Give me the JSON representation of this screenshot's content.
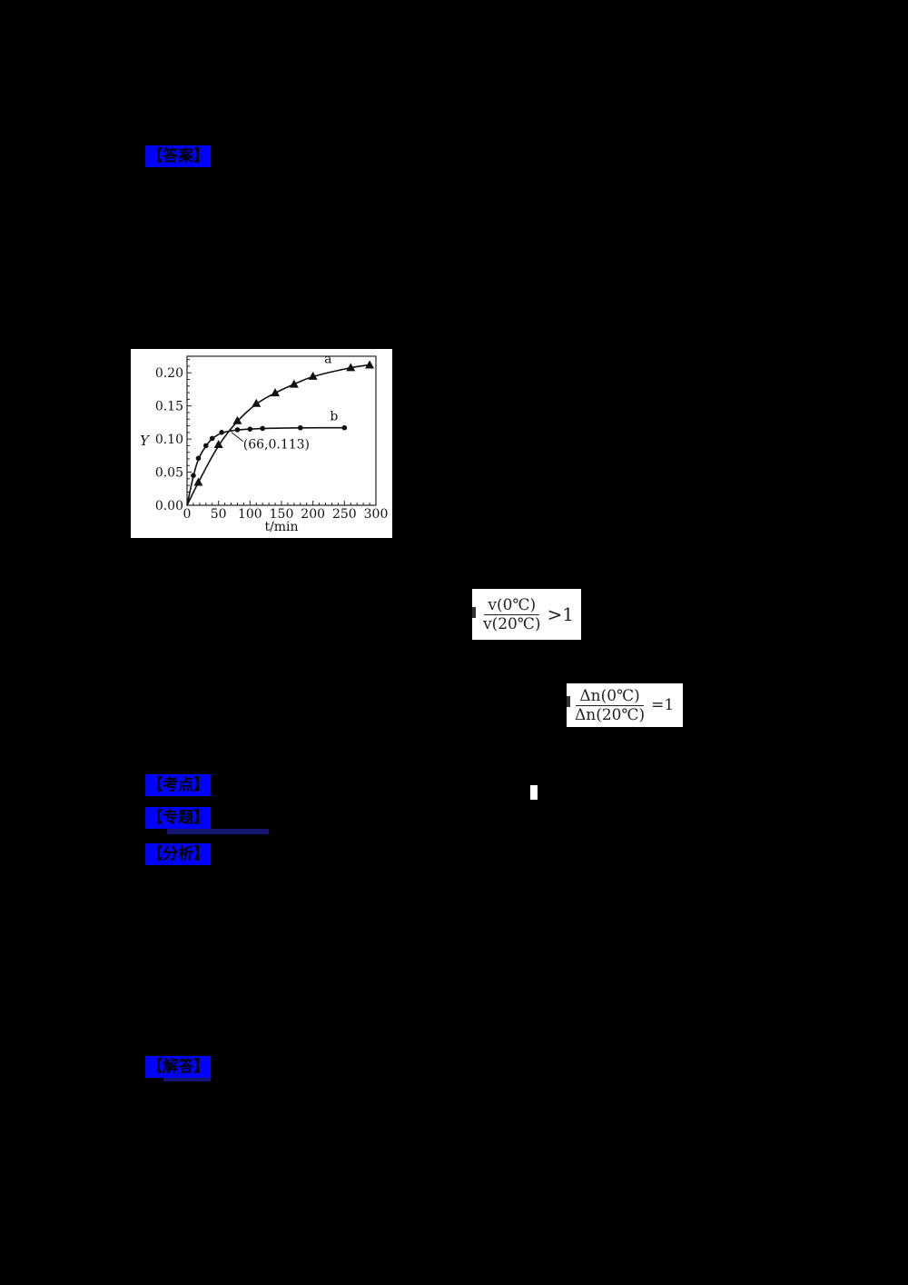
{
  "labels": {
    "answer": "【答案】",
    "exam_point": "【考点】",
    "topic": "【专题】",
    "analysis": "【分析】",
    "solution": "【解答】"
  },
  "colors": {
    "background": "#000000",
    "tag_bg": "#0000ff",
    "underline": "#141473",
    "figure_bg": "#ffffff"
  },
  "formulas": {
    "rate_ratio": {
      "numerator": "v(0℃)",
      "denominator": "v(20℃)",
      "relation": ">1"
    },
    "amount_ratio": {
      "numerator": "Δn(0℃)",
      "denominator": "Δn(20℃)",
      "relation": "=1"
    }
  },
  "chart_data": {
    "type": "line",
    "title": "",
    "xlabel": "t/min",
    "ylabel": "Y",
    "xlim": [
      0,
      300
    ],
    "ylim": [
      0,
      0.225
    ],
    "xticks": [
      "0",
      "50",
      "100",
      "150",
      "200",
      "250",
      "300"
    ],
    "yticks": [
      "0.00",
      "0.05",
      "0.10",
      "0.15",
      "0.20"
    ],
    "grid": false,
    "legend": "inline curve labels",
    "series": [
      {
        "name": "a",
        "marker": "triangle",
        "x": [
          0,
          18,
          50,
          80,
          110,
          140,
          170,
          200,
          260,
          290
        ],
        "y": [
          0,
          0.035,
          0.092,
          0.128,
          0.154,
          0.17,
          0.183,
          0.195,
          0.208,
          0.212
        ]
      },
      {
        "name": "b",
        "marker": "circle",
        "x": [
          0,
          10,
          18,
          30,
          40,
          55,
          80,
          100,
          120,
          180,
          250
        ],
        "y": [
          0,
          0.045,
          0.071,
          0.09,
          0.101,
          0.11,
          0.114,
          0.115,
          0.116,
          0.117,
          0.117
        ]
      }
    ],
    "annotations": [
      {
        "text": "(66,0.113)",
        "x": 66,
        "y": 0.113
      }
    ]
  }
}
